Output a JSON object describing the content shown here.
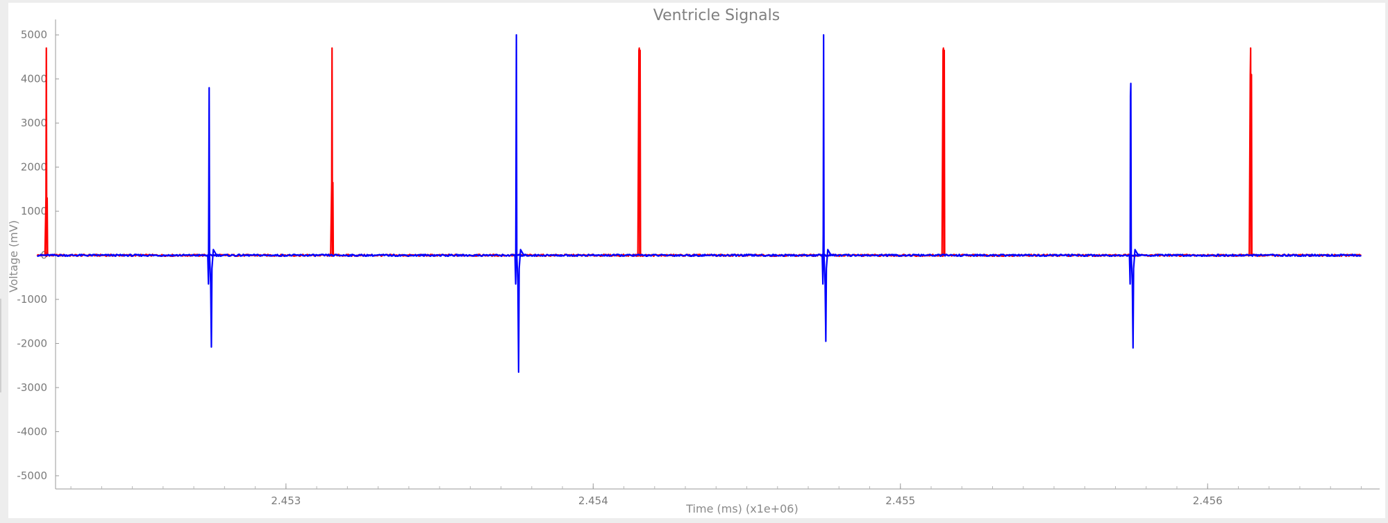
{
  "chart_data": {
    "type": "line",
    "title": "Ventricle Signals",
    "xlabel": "Time (ms) (x1e+06)",
    "ylabel": "Voltage (mV)",
    "xlim": [
      2.45225,
      2.45656
    ],
    "ylim": [
      -5300,
      5350
    ],
    "x_ticks": [
      2.453,
      2.454,
      2.455,
      2.456
    ],
    "y_ticks": [
      5000,
      4000,
      3000,
      2000,
      1000,
      0,
      -1000,
      -2000,
      -3000,
      -4000,
      -5000
    ],
    "grid": false,
    "legend": "none",
    "series": [
      {
        "color": "#ff0000",
        "x_range": [
          2.45219,
          2.4565
        ],
        "baseline": 0,
        "peaks": [
          {
            "x": 2.45222,
            "y": 4700,
            "secondary": 1300
          },
          {
            "x": 2.45315,
            "y": 4700,
            "secondary": 1650
          },
          {
            "x": 2.45415,
            "y": 4700,
            "secondary": 4650
          },
          {
            "x": 2.45514,
            "y": 4700,
            "secondary": 4650
          },
          {
            "x": 2.45614,
            "y": 4700,
            "secondary": 4100
          }
        ]
      },
      {
        "color": "#0000ff",
        "x_range": [
          2.45219,
          2.4565
        ],
        "baseline": 0,
        "peaks": [
          {
            "x": 2.45275,
            "y": 3800,
            "secondary": 1450,
            "trough": -2080,
            "pre_trough": -650,
            "bump": 130
          },
          {
            "x": 2.45375,
            "y": 5000,
            "secondary": 2100,
            "trough": -2650,
            "pre_trough": -650,
            "bump": 130
          },
          {
            "x": 2.45475,
            "y": 5000,
            "secondary": 500,
            "trough": -1950,
            "pre_trough": -650,
            "bump": 130
          },
          {
            "x": 2.45575,
            "y": 3900,
            "secondary": 3600,
            "trough": -2100,
            "pre_trough": -650,
            "bump": 130
          }
        ]
      }
    ]
  }
}
